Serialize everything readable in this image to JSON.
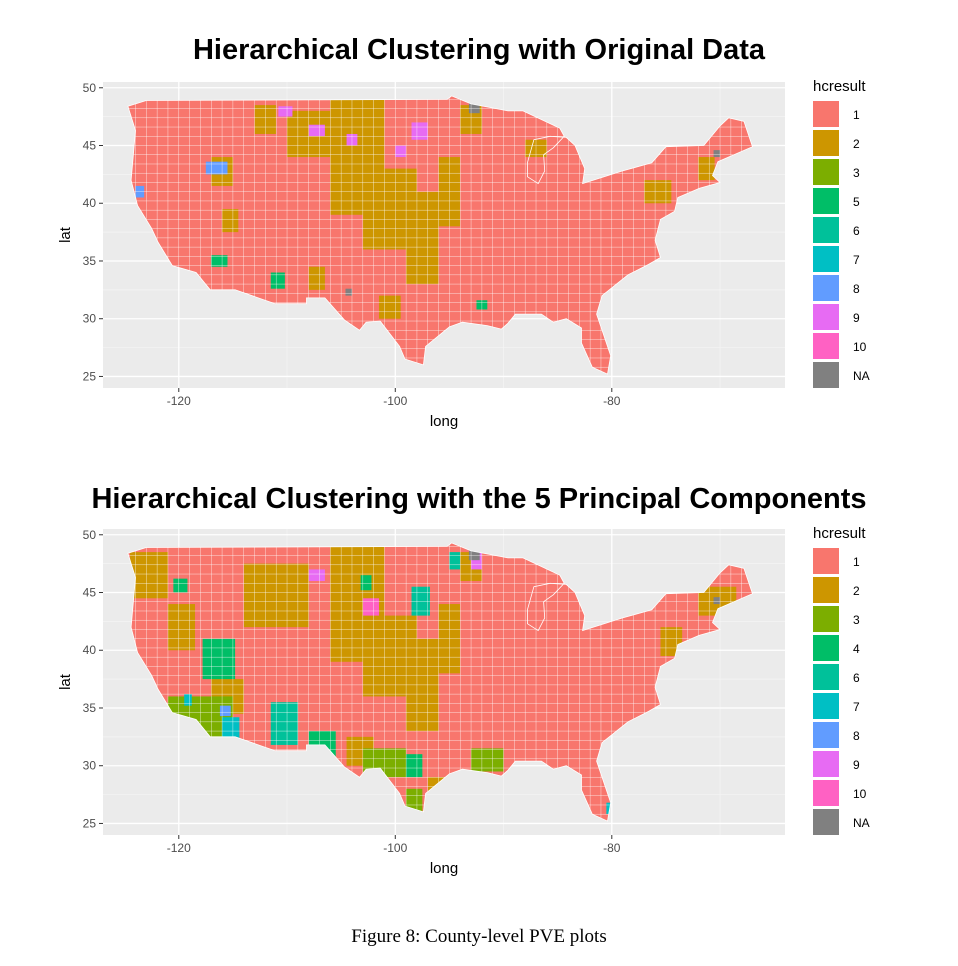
{
  "colors": {
    "panel": "#ebebeb",
    "grid": "#ffffff",
    "c1": "#f8766d",
    "c2": "#cd9600",
    "c3": "#7cae00",
    "c4": "#00be67",
    "c5": "#00be67",
    "c6": "#00c19a",
    "c7": "#00bfc4",
    "c8": "#619cff",
    "c9": "#e76bf3",
    "c10": "#ff61c3",
    "na": "#808080"
  },
  "caption": "Figure 8: County-level PVE plots",
  "chart_data": [
    {
      "type": "choropleth-map",
      "title": "Hierarchical Clustering with Original Data",
      "xlabel": "long",
      "ylabel": "lat",
      "x_ticks": [
        "-120",
        "-100",
        "-80"
      ],
      "y_ticks": [
        "50",
        "45",
        "40",
        "35",
        "30",
        "25"
      ],
      "xlim": [
        -127,
        -64
      ],
      "ylim": [
        24,
        50.5
      ],
      "legend": {
        "title": "hcresult",
        "placement": "right",
        "entries": [
          {
            "label": "1",
            "color": "#f8766d"
          },
          {
            "label": "2",
            "color": "#cd9600"
          },
          {
            "label": "3",
            "color": "#7cae00"
          },
          {
            "label": "5",
            "color": "#00be67"
          },
          {
            "label": "6",
            "color": "#00c19a"
          },
          {
            "label": "7",
            "color": "#00bfc4"
          },
          {
            "label": "8",
            "color": "#619cff"
          },
          {
            "label": "9",
            "color": "#e76bf3"
          },
          {
            "label": "10",
            "color": "#ff61c3"
          },
          {
            "label": "NA",
            "color": "#808080"
          }
        ]
      }
    },
    {
      "type": "choropleth-map",
      "title": "Hierarchical Clustering with the 5 Principal Components",
      "xlabel": "long",
      "ylabel": "lat",
      "x_ticks": [
        "-120",
        "-100",
        "-80"
      ],
      "y_ticks": [
        "50",
        "45",
        "40",
        "35",
        "30",
        "25"
      ],
      "xlim": [
        -127,
        -64
      ],
      "ylim": [
        24,
        50.5
      ],
      "legend": {
        "title": "hcresult",
        "placement": "right",
        "entries": [
          {
            "label": "1",
            "color": "#f8766d"
          },
          {
            "label": "2",
            "color": "#cd9600"
          },
          {
            "label": "3",
            "color": "#7cae00"
          },
          {
            "label": "4",
            "color": "#00be67"
          },
          {
            "label": "6",
            "color": "#00c19a"
          },
          {
            "label": "7",
            "color": "#00bfc4"
          },
          {
            "label": "8",
            "color": "#619cff"
          },
          {
            "label": "9",
            "color": "#e76bf3"
          },
          {
            "label": "10",
            "color": "#ff61c3"
          },
          {
            "label": "NA",
            "color": "#808080"
          }
        ]
      }
    }
  ]
}
